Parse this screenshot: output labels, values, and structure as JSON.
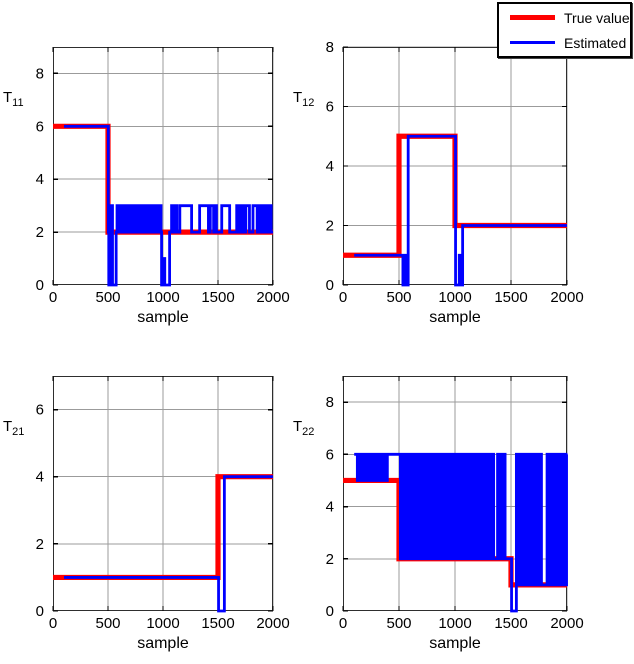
{
  "styles": {
    "background": "#ffffff",
    "grid_color": "#9b9b9b",
    "axis_color": "#2e2e2e",
    "tick_label_color": "#000000",
    "true_color": "#ff0000",
    "estimated_color": "#0000ff"
  },
  "legend": {
    "position": "top-right",
    "items": [
      {
        "label": "True value",
        "color": "#ff0000",
        "sample_thickness": 5
      },
      {
        "label": "Estimated",
        "color": "#0000ff",
        "sample_thickness": 3
      }
    ]
  },
  "chart_data": [
    {
      "type": "line",
      "id": "T11",
      "ylabel_main": "T",
      "ylabel_sub": "11",
      "xlabel": "sample",
      "xlim": [
        0,
        2000
      ],
      "ylim": [
        0,
        9
      ],
      "xticks": [
        0,
        500,
        1000,
        1500,
        2000
      ],
      "yticks": [
        0,
        2,
        4,
        6,
        8
      ],
      "grid": true,
      "series": [
        {
          "name": "True value",
          "color": "#ff0000",
          "width": 5.2,
          "x_end": 2000,
          "steps": [
            [
              0,
              6
            ],
            [
              500,
              2
            ]
          ],
          "bands": []
        },
        {
          "name": "Estimated",
          "color": "#0000ff",
          "width": 2.8,
          "x_end": 2000,
          "steps": [
            [
              100,
              6
            ],
            [
              503,
              2
            ],
            [
              507,
              0
            ],
            [
              519,
              2
            ],
            [
              526,
              3
            ],
            [
              541,
              0
            ],
            [
              574,
              2
            ],
            [
              582,
              3
            ],
            [
              602,
              2
            ],
            [
              611,
              3
            ],
            [
              621,
              2
            ],
            [
              632,
              3
            ],
            [
              644,
              2
            ],
            [
              651,
              3
            ],
            [
              671,
              2
            ],
            [
              679,
              3
            ],
            [
              687,
              2
            ],
            [
              707,
              3
            ],
            [
              727,
              2
            ],
            [
              741,
              3
            ],
            [
              761,
              2
            ],
            [
              772,
              3
            ],
            [
              792,
              2
            ],
            [
              799,
              3
            ],
            [
              817,
              2
            ],
            [
              825,
              3
            ],
            [
              845,
              2
            ],
            [
              854,
              3
            ],
            [
              871,
              2
            ],
            [
              879,
              3
            ],
            [
              897,
              2
            ],
            [
              904,
              3
            ],
            [
              921,
              2
            ],
            [
              929,
              3
            ],
            [
              947,
              2
            ],
            [
              964,
              3
            ],
            [
              982,
              2
            ],
            [
              987,
              0
            ],
            [
              1008,
              1
            ],
            [
              1016,
              0
            ],
            [
              1060,
              2
            ],
            [
              1078,
              3
            ],
            [
              1098,
              2
            ],
            [
              1108,
              3
            ],
            [
              1126,
              2
            ],
            [
              1153,
              3
            ],
            [
              1260,
              2
            ],
            [
              1333,
              3
            ],
            [
              1413,
              2
            ],
            [
              1430,
              3
            ],
            [
              1460,
              2
            ],
            [
              1470,
              3
            ],
            [
              1486,
              2
            ],
            [
              1534,
              3
            ],
            [
              1606,
              2
            ],
            [
              1670,
              3
            ],
            [
              1686,
              2
            ],
            [
              1696,
              3
            ],
            [
              1710,
              2
            ],
            [
              1720,
              3
            ],
            [
              1736,
              2
            ],
            [
              1753,
              3
            ],
            [
              1786,
              2
            ],
            [
              1818,
              3
            ],
            [
              1856,
              2
            ],
            [
              1868,
              3
            ],
            [
              1886,
              2
            ],
            [
              1898,
              3
            ],
            [
              1916,
              2
            ],
            [
              1928,
              3
            ],
            [
              1950,
              2
            ],
            [
              1960,
              3
            ],
            [
              1983,
              2
            ]
          ],
          "bands": []
        }
      ]
    },
    {
      "type": "line",
      "id": "T12",
      "ylabel_main": "T",
      "ylabel_sub": "12",
      "xlabel": "sample",
      "xlim": [
        0,
        2000
      ],
      "ylim": [
        0,
        8
      ],
      "xticks": [
        0,
        500,
        1000,
        1500,
        2000
      ],
      "yticks": [
        0,
        2,
        4,
        6,
        8
      ],
      "grid": true,
      "series": [
        {
          "name": "True value",
          "color": "#ff0000",
          "width": 5.2,
          "x_end": 2000,
          "steps": [
            [
              0,
              1
            ],
            [
              500,
              5
            ],
            [
              1000,
              2
            ]
          ],
          "bands": []
        },
        {
          "name": "Estimated",
          "color": "#0000ff",
          "width": 2.8,
          "x_end": 2000,
          "steps": [
            [
              100,
              1
            ],
            [
              535,
              0
            ],
            [
              548,
              1
            ],
            [
              572,
              0
            ],
            [
              582,
              5
            ],
            [
              1005,
              0
            ],
            [
              1038,
              1
            ],
            [
              1050,
              0
            ],
            [
              1068,
              2
            ]
          ],
          "bands": []
        }
      ]
    },
    {
      "type": "line",
      "id": "T21",
      "ylabel_main": "T",
      "ylabel_sub": "21",
      "xlabel": "sample",
      "xlim": [
        0,
        2000
      ],
      "ylim": [
        0,
        7
      ],
      "xticks": [
        0,
        500,
        1000,
        1500,
        2000
      ],
      "yticks": [
        0,
        2,
        4,
        6
      ],
      "grid": true,
      "series": [
        {
          "name": "True value",
          "color": "#ff0000",
          "width": 5.2,
          "x_end": 2000,
          "steps": [
            [
              0,
              1
            ],
            [
              1500,
              4
            ]
          ],
          "bands": []
        },
        {
          "name": "Estimated",
          "color": "#0000ff",
          "width": 2.8,
          "x_end": 2000,
          "steps": [
            [
              100,
              1
            ],
            [
              1505,
              0
            ],
            [
              1558,
              4
            ]
          ],
          "bands": []
        }
      ]
    },
    {
      "type": "line",
      "id": "T22",
      "ylabel_main": "T",
      "ylabel_sub": "22",
      "xlabel": "sample",
      "xlim": [
        0,
        2000
      ],
      "ylim": [
        0,
        9
      ],
      "xticks": [
        0,
        500,
        1000,
        1500,
        2000
      ],
      "yticks": [
        0,
        2,
        4,
        6,
        8
      ],
      "grid": true,
      "series": [
        {
          "name": "True value",
          "color": "#ff0000",
          "width": 5.2,
          "x_end": 2000,
          "steps": [
            [
              0,
              5
            ],
            [
              500,
              2
            ],
            [
              1500,
              1
            ]
          ],
          "bands": []
        },
        {
          "name": "Estimated",
          "color": "#0000ff",
          "width": 2.8,
          "x_end": 2000,
          "steps": [
            [
              100,
              6
            ],
            [
              128,
              5
            ],
            [
              134,
              6
            ],
            [
              150,
              5
            ],
            [
              156,
              6
            ],
            [
              170,
              5
            ],
            [
              176,
              6
            ],
            [
              190,
              5
            ],
            [
              198,
              6
            ],
            [
              214,
              5
            ],
            [
              220,
              6
            ],
            [
              238,
              5
            ],
            [
              246,
              6
            ],
            [
              260,
              5
            ],
            [
              266,
              6
            ],
            [
              283,
              5
            ],
            [
              290,
              6
            ],
            [
              303,
              5
            ],
            [
              310,
              6
            ],
            [
              330,
              5
            ],
            [
              350,
              6
            ],
            [
              360,
              5
            ],
            [
              366,
              6
            ],
            [
              390,
              5
            ],
            [
              396,
              6
            ],
            [
              630,
              2
            ],
            [
              825,
              2
            ],
            [
              843,
              6
            ],
            [
              847,
              2
            ],
            [
              1345,
              2
            ],
            [
              1455,
              2
            ],
            [
              1505,
              0
            ],
            [
              1644,
              1
            ],
            [
              1702,
              1
            ],
            [
              1754,
              1
            ],
            [
              1776,
              1
            ],
            [
              1872,
              1
            ],
            [
              1955,
              1
            ],
            [
              1996,
              6
            ]
          ],
          "bands": [
            {
              "x0": 505,
              "x1": 628,
              "lo": 2,
              "hi": 6,
              "period": 12
            },
            {
              "x0": 652,
              "x1": 822,
              "lo": 2,
              "hi": 6,
              "period": 12
            },
            {
              "x0": 868,
              "x1": 1342,
              "lo": 2,
              "hi": 6,
              "period": 11
            },
            {
              "x0": 1380,
              "x1": 1452,
              "lo": 2,
              "hi": 6,
              "period": 12
            },
            {
              "x0": 1548,
              "x1": 1642,
              "lo": 1,
              "hi": 6,
              "period": 10
            },
            {
              "x0": 1656,
              "x1": 1700,
              "lo": 1,
              "hi": 6,
              "period": 10
            },
            {
              "x0": 1716,
              "x1": 1752,
              "lo": 1,
              "hi": 6,
              "period": 10
            },
            {
              "x0": 1766,
              "x1": 1774,
              "lo": 1,
              "hi": 6,
              "period": 10
            },
            {
              "x0": 1822,
              "x1": 1870,
              "lo": 1,
              "hi": 6,
              "period": 10
            },
            {
              "x0": 1886,
              "x1": 1952,
              "lo": 1,
              "hi": 6,
              "period": 10
            },
            {
              "x0": 1966,
              "x1": 1994,
              "lo": 1,
              "hi": 6,
              "period": 10
            }
          ]
        }
      ]
    }
  ]
}
